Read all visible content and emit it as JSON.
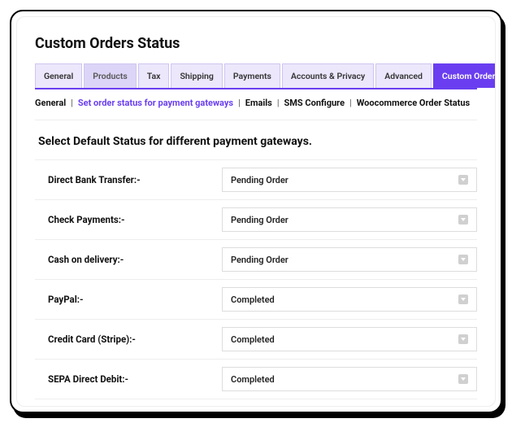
{
  "page": {
    "title": "Custom Orders Status",
    "section_title": "Select Default Status for different payment gateways."
  },
  "colors": {
    "accent": "#6a3ef0",
    "tab_bg": "#ece7fb",
    "tab_dim_bg": "#ddd5f7",
    "border": "#eee",
    "text": "#111"
  },
  "tabs": [
    {
      "label": "General",
      "dim": false
    },
    {
      "label": "Products",
      "dim": true
    },
    {
      "label": "Tax",
      "dim": false
    },
    {
      "label": "Shipping",
      "dim": false
    },
    {
      "label": "Payments",
      "dim": false
    },
    {
      "label": "Accounts & Privacy",
      "dim": false
    },
    {
      "label": "Advanced",
      "dim": false
    },
    {
      "label": "Custom Orders Status",
      "active": true
    }
  ],
  "subnav": [
    {
      "label": "General"
    },
    {
      "label": "Set order status for payment gateways",
      "active": true
    },
    {
      "label": "Emails"
    },
    {
      "label": "SMS  Configure"
    },
    {
      "label": "Woocommerce Order Status"
    }
  ],
  "rows": [
    {
      "label": "Direct Bank Transfer:-",
      "value": "Pending Order"
    },
    {
      "label": "Check Payments:-",
      "value": "Pending Order"
    },
    {
      "label": "Cash on delivery:-",
      "value": "Pending Order"
    },
    {
      "label": "PayPal:-",
      "value": "Completed"
    },
    {
      "label": "Credit Card  (Stripe):-",
      "value": "Completed"
    },
    {
      "label": "SEPA Direct Debit:-",
      "value": "Completed"
    }
  ]
}
